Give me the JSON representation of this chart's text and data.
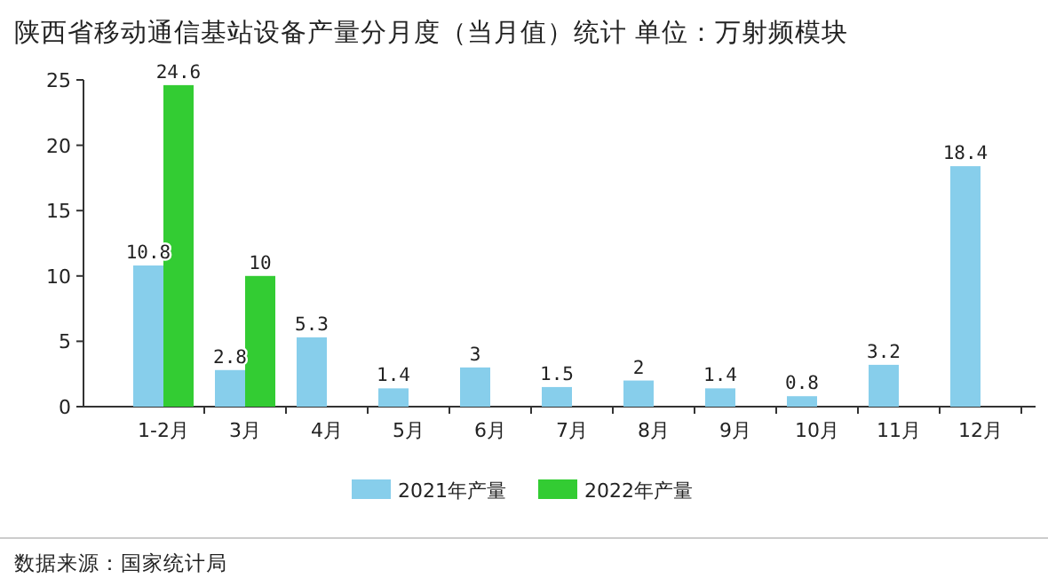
{
  "chart_data": {
    "type": "bar",
    "title": "陕西省移动通信基站设备产量分月度（当月值）统计  单位：万射频模块",
    "categories": [
      "1-2月",
      "3月",
      "4月",
      "5月",
      "6月",
      "7月",
      "8月",
      "9月",
      "10月",
      "11月",
      "12月"
    ],
    "series": [
      {
        "name": "2021年产量",
        "color": "#87ceeb",
        "values": [
          10.8,
          2.8,
          5.3,
          1.4,
          3,
          1.5,
          2,
          1.4,
          0.8,
          3.2,
          18.4
        ]
      },
      {
        "name": "2022年产量",
        "color": "#33cc33",
        "values": [
          24.6,
          10,
          null,
          null,
          null,
          null,
          null,
          null,
          null,
          null,
          null
        ]
      }
    ],
    "ylim": [
      0,
      25
    ],
    "yticks": [
      0,
      5,
      10,
      15,
      20,
      25
    ],
    "data_labels": true,
    "legend": "bottom",
    "grid": false,
    "annotations": [
      "数据来源：国家统计局"
    ]
  }
}
